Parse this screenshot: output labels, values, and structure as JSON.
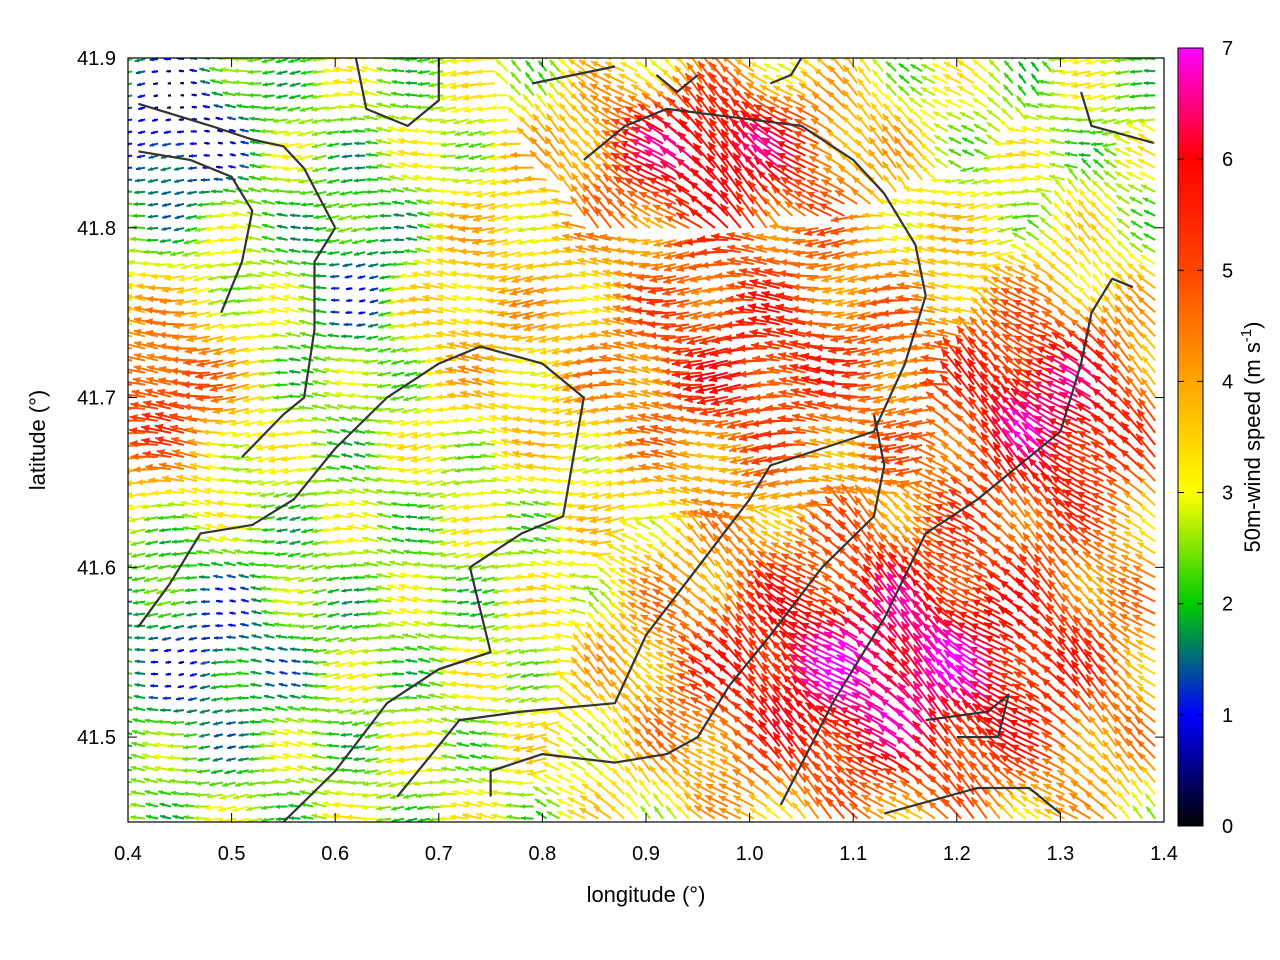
{
  "chart_data": {
    "type": "quiver",
    "title": "",
    "xlabel": "longitude (°)",
    "ylabel": "latitude (°)",
    "xlim": [
      0.4,
      1.4
    ],
    "ylim": [
      41.45,
      41.9
    ],
    "xticks": [
      0.4,
      0.5,
      0.6,
      0.7,
      0.8,
      0.9,
      1.0,
      1.1,
      1.2,
      1.3,
      1.4
    ],
    "xtick_labels": [
      "0.4",
      "0.5",
      "0.6",
      "0.7",
      "0.8",
      "0.9",
      "1.0",
      "1.1",
      "1.2",
      "1.3",
      "1.4"
    ],
    "yticks": [
      41.5,
      41.6,
      41.7,
      41.8,
      41.9
    ],
    "ytick_labels": [
      "41.5",
      "41.6",
      "41.7",
      "41.8",
      "41.9"
    ],
    "grid": false,
    "colorbar": {
      "label": "50m-wind speed (m s-1)",
      "label_main": "50m-wind speed (m s",
      "label_sup": "-1",
      "label_end": ")",
      "range": [
        0,
        7
      ],
      "ticks": [
        0,
        1,
        2,
        3,
        4,
        5,
        6,
        7
      ],
      "tick_labels": [
        "0",
        "1",
        "2",
        "3",
        "4",
        "5",
        "6",
        "7"
      ],
      "colormap": [
        "#000000",
        "#0000ff",
        "#00cc00",
        "#ffff00",
        "#ffa500",
        "#ff4500",
        "#ff0000",
        "#ff00ff"
      ]
    },
    "vector_field_regions": [
      {
        "lon": [
          0.4,
          0.5
        ],
        "lat": [
          41.65,
          41.75
        ],
        "speed": 5.5,
        "direction": "westward"
      },
      {
        "lon": [
          0.83,
          1.2
        ],
        "lat": [
          41.65,
          41.8
        ],
        "speed": 5.5,
        "direction": "westward"
      },
      {
        "lon": [
          0.85,
          1.1
        ],
        "lat": [
          41.8,
          41.88
        ],
        "speed": 6.5,
        "direction": "north-westward"
      },
      {
        "lon": [
          0.9,
          1.4
        ],
        "lat": [
          41.45,
          41.62
        ],
        "speed": 6.8,
        "direction": "north-westward"
      },
      {
        "lon": [
          1.2,
          1.4
        ],
        "lat": [
          41.62,
          41.75
        ],
        "speed": 6.5,
        "direction": "north-westward"
      },
      {
        "lon": [
          0.52,
          0.8
        ],
        "lat": [
          41.5,
          41.7
        ],
        "speed": 2.5,
        "direction": "westward"
      },
      {
        "lon": [
          0.4,
          0.55
        ],
        "lat": [
          41.5,
          41.6
        ],
        "speed": 1.2,
        "direction": "westward"
      },
      {
        "lon": [
          0.6,
          0.68
        ],
        "lat": [
          41.72,
          41.82
        ],
        "speed": 1.0,
        "direction": "westward"
      },
      {
        "lon": [
          0.4,
          0.5
        ],
        "lat": [
          41.82,
          41.9
        ],
        "speed": 0.5,
        "direction": "westward"
      },
      {
        "lon": [
          0.68,
          0.83
        ],
        "lat": [
          41.68,
          41.82
        ],
        "speed": 3.8,
        "direction": "westward"
      }
    ],
    "contour_lines": [
      [
        [
          0.41,
          41.873
        ],
        [
          0.48,
          41.86
        ],
        [
          0.52,
          41.852
        ],
        [
          0.55,
          41.848
        ],
        [
          0.57,
          41.835
        ],
        [
          0.6,
          41.8
        ]
      ],
      [
        [
          0.41,
          41.845
        ],
        [
          0.46,
          41.84
        ],
        [
          0.5,
          41.83
        ],
        [
          0.52,
          41.81
        ],
        [
          0.51,
          41.78
        ],
        [
          0.49,
          41.75
        ]
      ],
      [
        [
          0.51,
          41.665
        ],
        [
          0.55,
          41.69
        ],
        [
          0.57,
          41.7
        ],
        [
          0.58,
          41.74
        ],
        [
          0.58,
          41.78
        ],
        [
          0.6,
          41.8
        ]
      ],
      [
        [
          0.41,
          41.565
        ],
        [
          0.44,
          41.59
        ],
        [
          0.47,
          41.62
        ],
        [
          0.52,
          41.625
        ],
        [
          0.56,
          41.64
        ],
        [
          0.6,
          41.67
        ],
        [
          0.65,
          41.7
        ],
        [
          0.7,
          41.72
        ],
        [
          0.74,
          41.73
        ],
        [
          0.8,
          41.72
        ],
        [
          0.84,
          41.7
        ],
        [
          0.82,
          41.63
        ],
        [
          0.78,
          41.62
        ],
        [
          0.73,
          41.6
        ],
        [
          0.75,
          41.55
        ],
        [
          0.7,
          41.54
        ]
      ],
      [
        [
          0.55,
          41.45
        ],
        [
          0.6,
          41.48
        ],
        [
          0.65,
          41.52
        ],
        [
          0.7,
          41.54
        ],
        [
          0.75,
          41.55
        ]
      ],
      [
        [
          0.66,
          41.465
        ],
        [
          0.72,
          41.51
        ],
        [
          0.78,
          41.515
        ],
        [
          0.87,
          41.52
        ],
        [
          0.9,
          41.56
        ],
        [
          0.95,
          41.6
        ],
        [
          1.0,
          41.64
        ],
        [
          1.02,
          41.66
        ],
        [
          1.12,
          41.68
        ],
        [
          1.15,
          41.72
        ],
        [
          1.17,
          41.76
        ],
        [
          1.16,
          41.79
        ],
        [
          1.13,
          41.82
        ],
        [
          1.1,
          41.84
        ],
        [
          1.05,
          41.86
        ],
        [
          0.92,
          41.87
        ],
        [
          0.88,
          41.86
        ],
        [
          0.84,
          41.84
        ]
      ],
      [
        [
          0.75,
          41.465
        ],
        [
          0.75,
          41.48
        ],
        [
          0.8,
          41.49
        ],
        [
          0.87,
          41.485
        ],
        [
          0.92,
          41.49
        ],
        [
          0.95,
          41.5
        ],
        [
          0.98,
          41.53
        ],
        [
          1.02,
          41.56
        ],
        [
          1.07,
          41.6
        ],
        [
          1.12,
          41.63
        ],
        [
          1.13,
          41.66
        ],
        [
          1.12,
          41.69
        ]
      ],
      [
        [
          1.03,
          41.46
        ],
        [
          1.08,
          41.52
        ],
        [
          1.13,
          41.57
        ],
        [
          1.17,
          41.62
        ],
        [
          1.22,
          41.64
        ],
        [
          1.3,
          41.68
        ],
        [
          1.32,
          41.72
        ],
        [
          1.33,
          41.75
        ],
        [
          1.35,
          41.77
        ],
        [
          1.37,
          41.765
        ]
      ],
      [
        [
          1.17,
          41.51
        ],
        [
          1.23,
          41.515
        ],
        [
          1.25,
          41.525
        ],
        [
          1.24,
          41.5
        ],
        [
          1.2,
          41.5
        ]
      ],
      [
        [
          1.13,
          41.455
        ],
        [
          1.22,
          41.47
        ],
        [
          1.27,
          41.47
        ],
        [
          1.3,
          41.455
        ]
      ],
      [
        [
          1.32,
          41.88
        ],
        [
          1.33,
          41.86
        ],
        [
          1.39,
          41.85
        ]
      ],
      [
        [
          0.62,
          41.9
        ],
        [
          0.63,
          41.87
        ],
        [
          0.67,
          41.86
        ],
        [
          0.7,
          41.875
        ],
        [
          0.7,
          41.9
        ]
      ],
      [
        [
          0.79,
          41.885
        ],
        [
          0.83,
          41.89
        ],
        [
          0.87,
          41.895
        ]
      ],
      [
        [
          0.91,
          41.89
        ],
        [
          0.93,
          41.88
        ],
        [
          0.95,
          41.89
        ]
      ],
      [
        [
          1.02,
          41.885
        ],
        [
          1.04,
          41.89
        ],
        [
          1.05,
          41.9
        ]
      ]
    ]
  }
}
